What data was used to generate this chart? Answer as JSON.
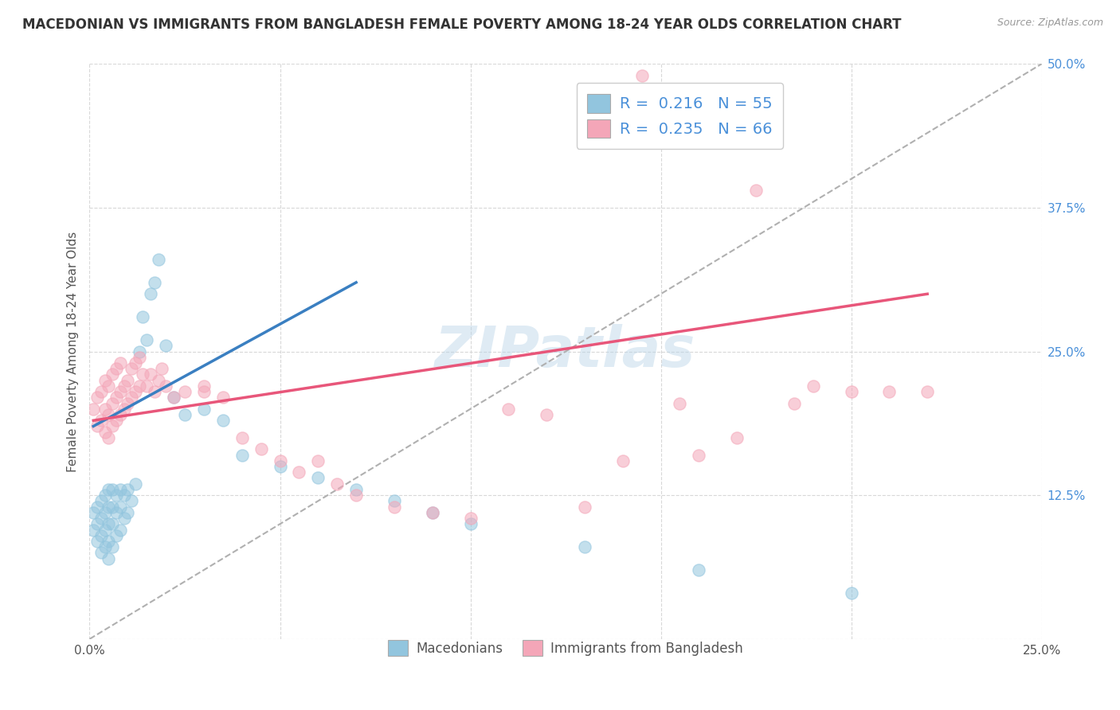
{
  "title": "MACEDONIAN VS IMMIGRANTS FROM BANGLADESH FEMALE POVERTY AMONG 18-24 YEAR OLDS CORRELATION CHART",
  "source": "Source: ZipAtlas.com",
  "ylabel": "Female Poverty Among 18-24 Year Olds",
  "xlim": [
    0.0,
    0.25
  ],
  "ylim": [
    0.0,
    0.5
  ],
  "xticks": [
    0.0,
    0.05,
    0.1,
    0.15,
    0.2,
    0.25
  ],
  "yticks": [
    0.0,
    0.125,
    0.25,
    0.375,
    0.5
  ],
  "macedonians_R": 0.216,
  "macedonians_N": 55,
  "bangladesh_R": 0.235,
  "bangladesh_N": 66,
  "macedonians_color": "#92c5de",
  "bangladesh_color": "#f4a6b8",
  "macedonians_line_color": "#3a7fc1",
  "bangladesh_line_color": "#e8567a",
  "trendline_dashed_color": "#b0b0b0",
  "watermark": "ZIPatlas",
  "macedonians_x": [
    0.001,
    0.001,
    0.002,
    0.002,
    0.002,
    0.003,
    0.003,
    0.003,
    0.003,
    0.004,
    0.004,
    0.004,
    0.004,
    0.005,
    0.005,
    0.005,
    0.005,
    0.005,
    0.006,
    0.006,
    0.006,
    0.006,
    0.007,
    0.007,
    0.007,
    0.008,
    0.008,
    0.008,
    0.009,
    0.009,
    0.01,
    0.01,
    0.011,
    0.012,
    0.013,
    0.014,
    0.015,
    0.016,
    0.017,
    0.018,
    0.02,
    0.022,
    0.025,
    0.03,
    0.035,
    0.04,
    0.05,
    0.06,
    0.07,
    0.08,
    0.09,
    0.1,
    0.13,
    0.16,
    0.2
  ],
  "macedonians_y": [
    0.095,
    0.11,
    0.085,
    0.1,
    0.115,
    0.075,
    0.09,
    0.105,
    0.12,
    0.08,
    0.095,
    0.11,
    0.125,
    0.07,
    0.085,
    0.1,
    0.115,
    0.13,
    0.08,
    0.1,
    0.115,
    0.13,
    0.09,
    0.11,
    0.125,
    0.095,
    0.115,
    0.13,
    0.105,
    0.125,
    0.11,
    0.13,
    0.12,
    0.135,
    0.25,
    0.28,
    0.26,
    0.3,
    0.31,
    0.33,
    0.255,
    0.21,
    0.195,
    0.2,
    0.19,
    0.16,
    0.15,
    0.14,
    0.13,
    0.12,
    0.11,
    0.1,
    0.08,
    0.06,
    0.04
  ],
  "bangladesh_x": [
    0.001,
    0.002,
    0.002,
    0.003,
    0.003,
    0.004,
    0.004,
    0.004,
    0.005,
    0.005,
    0.005,
    0.006,
    0.006,
    0.006,
    0.007,
    0.007,
    0.007,
    0.008,
    0.008,
    0.008,
    0.009,
    0.009,
    0.01,
    0.01,
    0.011,
    0.011,
    0.012,
    0.012,
    0.013,
    0.013,
    0.014,
    0.015,
    0.016,
    0.017,
    0.018,
    0.019,
    0.02,
    0.022,
    0.025,
    0.03,
    0.03,
    0.035,
    0.04,
    0.045,
    0.05,
    0.055,
    0.06,
    0.065,
    0.07,
    0.08,
    0.09,
    0.1,
    0.11,
    0.12,
    0.13,
    0.14,
    0.145,
    0.155,
    0.16,
    0.17,
    0.175,
    0.185,
    0.19,
    0.2,
    0.21,
    0.22
  ],
  "bangladesh_y": [
    0.2,
    0.185,
    0.21,
    0.19,
    0.215,
    0.18,
    0.2,
    0.225,
    0.175,
    0.195,
    0.22,
    0.185,
    0.205,
    0.23,
    0.19,
    0.21,
    0.235,
    0.195,
    0.215,
    0.24,
    0.2,
    0.22,
    0.205,
    0.225,
    0.21,
    0.235,
    0.215,
    0.24,
    0.22,
    0.245,
    0.23,
    0.22,
    0.23,
    0.215,
    0.225,
    0.235,
    0.22,
    0.21,
    0.215,
    0.22,
    0.215,
    0.21,
    0.175,
    0.165,
    0.155,
    0.145,
    0.155,
    0.135,
    0.125,
    0.115,
    0.11,
    0.105,
    0.2,
    0.195,
    0.115,
    0.155,
    0.49,
    0.205,
    0.16,
    0.175,
    0.39,
    0.205,
    0.22,
    0.215,
    0.215,
    0.215
  ],
  "mac_trend_x": [
    0.001,
    0.07
  ],
  "mac_trend_y": [
    0.185,
    0.31
  ],
  "ban_trend_x": [
    0.001,
    0.22
  ],
  "ban_trend_y": [
    0.19,
    0.3
  ],
  "legend_label_macedonians": "Macedonians",
  "legend_label_bangladesh": "Immigrants from Bangladesh",
  "background_color": "#ffffff",
  "grid_color": "#d8d8d8"
}
